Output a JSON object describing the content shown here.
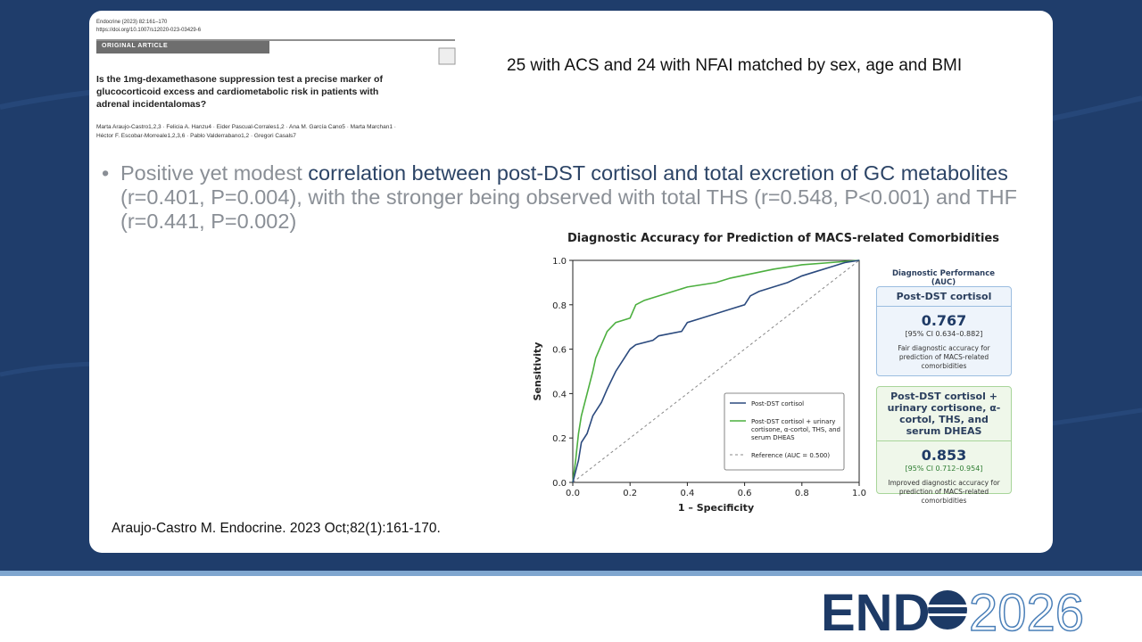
{
  "article": {
    "journal": "Endocrine (2023) 82:161–170",
    "doi": "https://doi.org/10.1007/s12020-023-03429-6",
    "section": "ORIGINAL ARTICLE",
    "title": "Is the 1mg-dexamethasone suppression test a precise marker of glucocorticoid excess and cardiometabolic risk in patients with adrenal incidentalomas?",
    "authors_line1": "Marta Araujo-Castro1,2,3 · Felicia A. Hanzu4 · Eider Pascual-Corrales1,2 · Ana M. García Cano5 · Marta Marchan1 ·",
    "authors_line2": "Héctor F. Escobar-Morreale1,2,3,6 · Pablo Valderrabano1,2 · Gregori Casals7"
  },
  "statement": "25 with ACS and 24 with NFAI matched by sex, age and BMI",
  "bullet": {
    "part1": "Positive yet modest ",
    "part2": "correlation between post-DST cortisol and total excretion of GC metabolites",
    "part3": " (r=0.401, P=0.004), with the stronger being observed with total THS (r=0.548, P<0.001) and THF (r=0.441, P=0.002)"
  },
  "citation": "Araujo-Castro M. Endocrine. 2023 Oct;82(1):161-170.",
  "chart_data": {
    "type": "line",
    "title": "Diagnostic Accuracy for Prediction of MACS-related Comorbidities",
    "xlabel": "1 – Specificity",
    "ylabel": "Sensitivity",
    "xlim": [
      0,
      1
    ],
    "ylim": [
      0,
      1
    ],
    "xticks": [
      {
        "value": 0,
        "label": "0.0"
      },
      0.2,
      0.4,
      0.6,
      0.8,
      {
        "value": 1,
        "label": "1.0"
      }
    ],
    "yticks": [
      {
        "value": 0,
        "label": "0.0"
      },
      0.2,
      0.4,
      0.6,
      0.8,
      {
        "value": 1,
        "label": "1.0"
      }
    ],
    "legend": "lower right",
    "series": [
      {
        "name": "Post-DST cortisol",
        "color": "#2b4a7e",
        "style": "solid",
        "x": [
          0,
          0.01,
          0.02,
          0.03,
          0.05,
          0.07,
          0.1,
          0.12,
          0.15,
          0.18,
          0.2,
          0.22,
          0.28,
          0.3,
          0.38,
          0.4,
          0.45,
          0.5,
          0.55,
          0.6,
          0.62,
          0.65,
          0.7,
          0.75,
          0.8,
          0.85,
          0.9,
          0.95,
          1
        ],
        "values": [
          0,
          0.05,
          0.1,
          0.18,
          0.22,
          0.3,
          0.36,
          0.42,
          0.5,
          0.56,
          0.6,
          0.62,
          0.64,
          0.66,
          0.68,
          0.72,
          0.74,
          0.76,
          0.78,
          0.8,
          0.84,
          0.86,
          0.88,
          0.9,
          0.93,
          0.95,
          0.97,
          0.99,
          1
        ]
      },
      {
        "name": "Post-DST cortisol + urinary cortisone, α-cortol, THS, and serum DHEAS",
        "color": "#4caf3f",
        "style": "solid",
        "x": [
          0,
          0.01,
          0.02,
          0.03,
          0.05,
          0.07,
          0.08,
          0.1,
          0.12,
          0.15,
          0.2,
          0.22,
          0.25,
          0.3,
          0.35,
          0.4,
          0.5,
          0.55,
          0.7,
          0.8,
          0.9,
          1
        ],
        "values": [
          0,
          0.1,
          0.22,
          0.3,
          0.4,
          0.5,
          0.56,
          0.62,
          0.68,
          0.72,
          0.74,
          0.8,
          0.82,
          0.84,
          0.86,
          0.88,
          0.9,
          0.92,
          0.96,
          0.98,
          0.99,
          1
        ]
      },
      {
        "name": "Reference (AUC = 0.500)",
        "color": "#888888",
        "style": "dashed",
        "x": [
          0,
          1
        ],
        "values": [
          0,
          1
        ]
      }
    ],
    "panel": {
      "heading": "Diagnostic Performance (AUC)",
      "cards": [
        {
          "title": "Post-DST cortisol",
          "auc": "0.767",
          "ci": "[95% CI 0.634–0.882]",
          "note": "Fair diagnostic accuracy for prediction of MACS-related comorbidities"
        },
        {
          "title": "Post-DST cortisol + urinary cortisone, α-cortol, THS, and serum DHEAS",
          "auc": "0.853",
          "ci": "[95% CI 0.712–0.954]",
          "note": "Improved diagnostic accuracy for prediction of MACS-related comorbidities"
        }
      ]
    }
  },
  "logo": {
    "brand": "END",
    "year": "2026"
  }
}
